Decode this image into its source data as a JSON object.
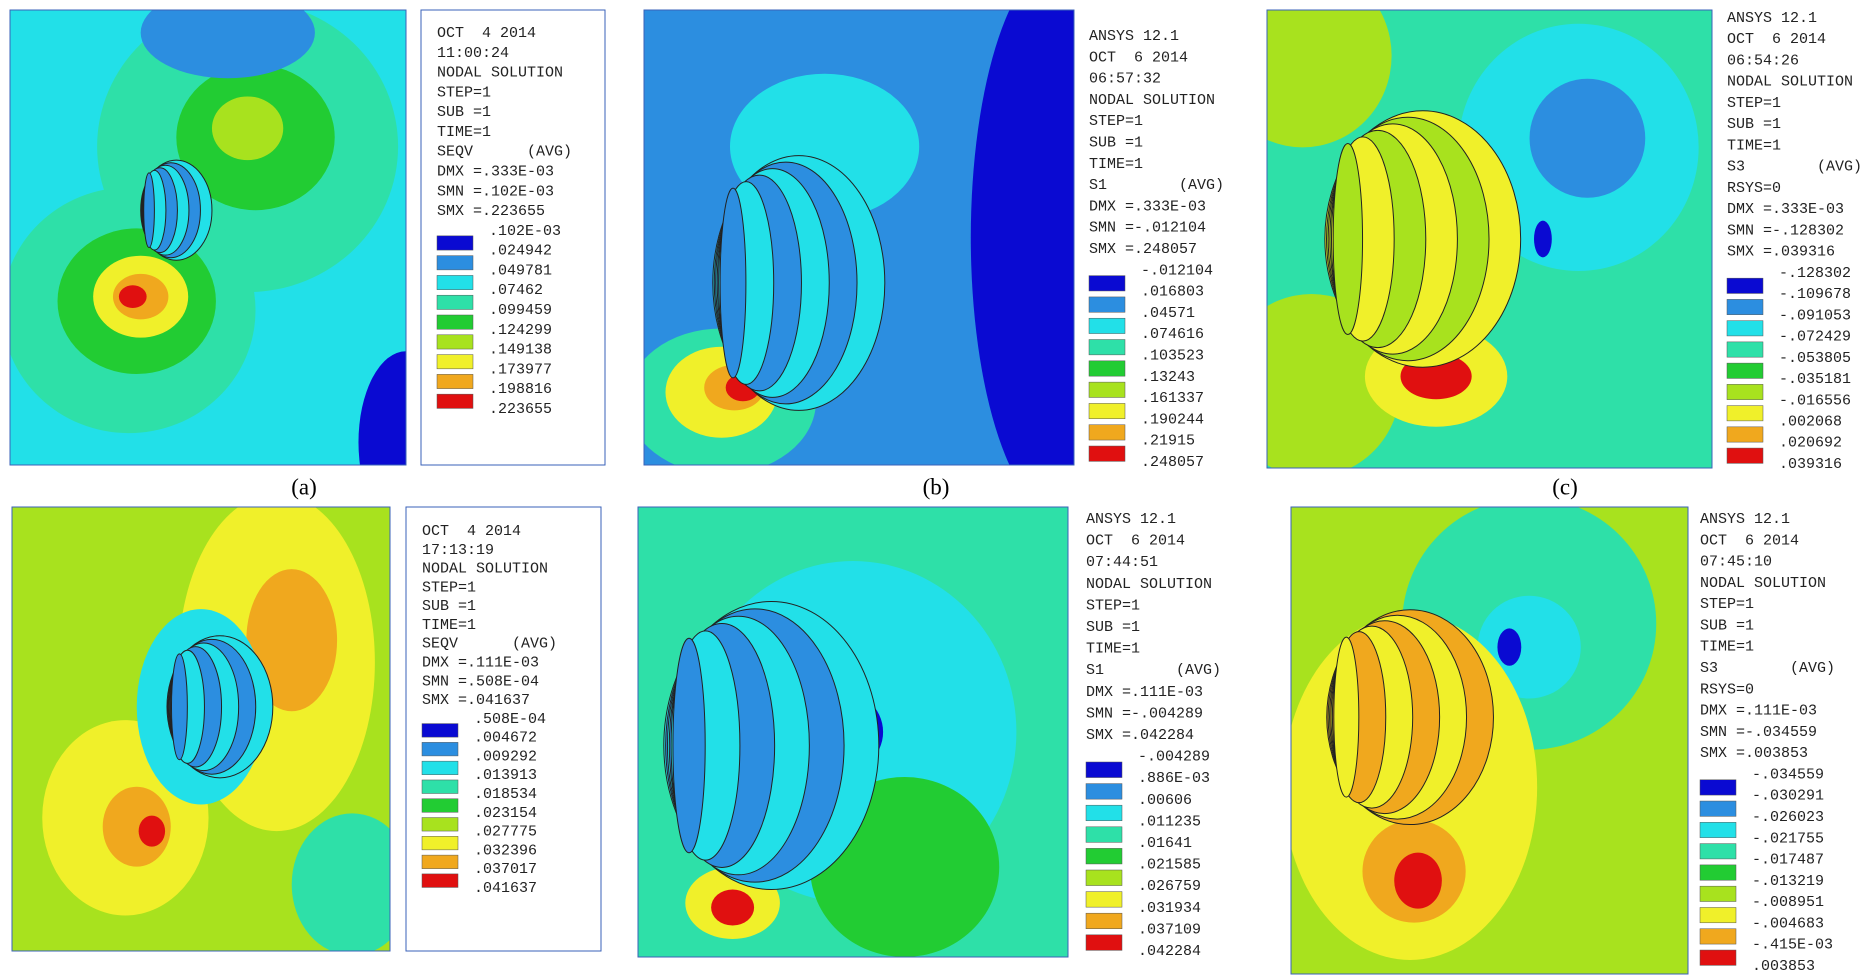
{
  "palette": [
    "#0a0ad2",
    "#2c8ee0",
    "#22e0e8",
    "#2ee0a8",
    "#22cc33",
    "#a8e21e",
    "#f0f02a",
    "#f0a81e",
    "#e01010"
  ],
  "panels": [
    {
      "caption": "(a)",
      "lines": [
        "OCT  4 2014",
        "11:00:24",
        "NODAL SOLUTION",
        "STEP=1",
        "SUB =1",
        "TIME=1",
        "SEQV      (AVG)",
        "DMX =.333E-03",
        "SMN =.102E-03",
        "SMX =.223655"
      ],
      "values": [
        ".102E-03",
        ".024942",
        ".049781",
        ".07462",
        ".099459",
        ".124299",
        ".149138",
        ".173977",
        ".198816",
        ".223655"
      ]
    },
    {
      "caption": "(b)",
      "lines": [
        "ANSYS 12.1",
        "OCT  6 2014",
        "06:57:32",
        "NODAL SOLUTION",
        "STEP=1",
        "SUB =1",
        "TIME=1",
        "S1        (AVG)",
        "DMX =.333E-03",
        "SMN =-.012104",
        "SMX =.248057"
      ],
      "values": [
        "-.012104",
        ".016803",
        ".04571",
        ".074616",
        ".103523",
        ".13243",
        ".161337",
        ".190244",
        ".21915",
        ".248057"
      ]
    },
    {
      "caption": "(c)",
      "lines": [
        "ANSYS 12.1",
        "OCT  6 2014",
        "06:54:26",
        "NODAL SOLUTION",
        "STEP=1",
        "SUB =1",
        "TIME=1",
        "S3        (AVG)",
        "RSYS=0",
        "DMX =.333E-03",
        "SMN =-.128302",
        "SMX =.039316"
      ],
      "values": [
        "-.128302",
        "-.109678",
        "-.091053",
        "-.072429",
        "-.053805",
        "-.035181",
        "-.016556",
        ".002068",
        ".020692",
        ".039316"
      ]
    },
    {
      "lines": [
        "OCT  4 2014",
        "17:13:19",
        "NODAL SOLUTION",
        "STEP=1",
        "SUB =1",
        "TIME=1",
        "SEQV      (AVG)",
        "DMX =.111E-03",
        "SMN =.508E-04",
        "SMX =.041637"
      ],
      "values": [
        ".508E-04",
        ".004672",
        ".009292",
        ".013913",
        ".018534",
        ".023154",
        ".027775",
        ".032396",
        ".037017",
        ".041637"
      ]
    },
    {
      "lines": [
        "ANSYS 12.1",
        "OCT  6 2014",
        "07:44:51",
        "NODAL SOLUTION",
        "STEP=1",
        "SUB =1",
        "TIME=1",
        "S1        (AVG)",
        "DMX =.111E-03",
        "SMN =-.004289",
        "SMX =.042284"
      ],
      "values": [
        "-.004289",
        ".886E-03",
        ".00606",
        ".011235",
        ".01641",
        ".021585",
        ".026759",
        ".031934",
        ".037109",
        ".042284"
      ]
    },
    {
      "lines": [
        "ANSYS 12.1",
        "OCT  6 2014",
        "07:45:10",
        "NODAL SOLUTION",
        "STEP=1",
        "SUB =1",
        "TIME=1",
        "S3        (AVG)",
        "RSYS=0",
        "DMX =.111E-03",
        "SMN =-.034559",
        "SMX =.003853"
      ],
      "values": [
        "-.034559",
        "-.030291",
        "-.026023",
        "-.021755",
        "-.017487",
        "-.013219",
        "-.008951",
        "-.004683",
        "-.415E-03",
        ".003853"
      ]
    }
  ]
}
